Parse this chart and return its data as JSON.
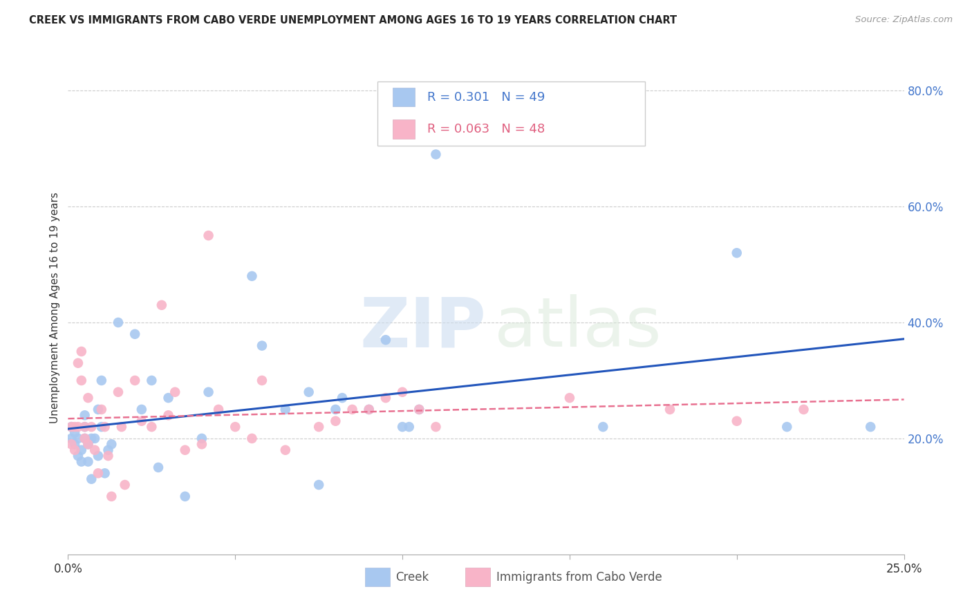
{
  "title": "CREEK VS IMMIGRANTS FROM CABO VERDE UNEMPLOYMENT AMONG AGES 16 TO 19 YEARS CORRELATION CHART",
  "source": "Source: ZipAtlas.com",
  "ylabel": "Unemployment Among Ages 16 to 19 years",
  "xlim": [
    0.0,
    0.25
  ],
  "ylim": [
    0.0,
    0.85
  ],
  "yticks": [
    0.2,
    0.4,
    0.6,
    0.8
  ],
  "ytick_labels": [
    "20.0%",
    "40.0%",
    "60.0%",
    "80.0%"
  ],
  "xticks": [
    0.0,
    0.05,
    0.1,
    0.15,
    0.2,
    0.25
  ],
  "xtick_labels": [
    "0.0%",
    "",
    "",
    "",
    "",
    "25.0%"
  ],
  "legend_labels": [
    "Creek",
    "Immigrants from Cabo Verde"
  ],
  "creek_color": "#a8c8f0",
  "cabo_color": "#f8b4c8",
  "creek_line_color": "#2255bb",
  "cabo_line_color": "#e87090",
  "creek_R": 0.301,
  "creek_N": 49,
  "cabo_R": 0.063,
  "cabo_N": 48,
  "watermark_zip": "ZIP",
  "watermark_atlas": "atlas",
  "creek_x": [
    0.001,
    0.001,
    0.002,
    0.002,
    0.003,
    0.003,
    0.004,
    0.004,
    0.005,
    0.005,
    0.005,
    0.006,
    0.006,
    0.007,
    0.007,
    0.008,
    0.009,
    0.009,
    0.01,
    0.01,
    0.011,
    0.012,
    0.013,
    0.015,
    0.02,
    0.022,
    0.025,
    0.027,
    0.03,
    0.035,
    0.04,
    0.042,
    0.055,
    0.058,
    0.065,
    0.072,
    0.075,
    0.08,
    0.082,
    0.09,
    0.095,
    0.1,
    0.102,
    0.105,
    0.11,
    0.16,
    0.2,
    0.215,
    0.24
  ],
  "creek_y": [
    0.22,
    0.2,
    0.19,
    0.21,
    0.17,
    0.2,
    0.16,
    0.18,
    0.22,
    0.2,
    0.24,
    0.19,
    0.16,
    0.13,
    0.2,
    0.2,
    0.25,
    0.17,
    0.22,
    0.3,
    0.14,
    0.18,
    0.19,
    0.4,
    0.38,
    0.25,
    0.3,
    0.15,
    0.27,
    0.1,
    0.2,
    0.28,
    0.48,
    0.36,
    0.25,
    0.28,
    0.12,
    0.25,
    0.27,
    0.25,
    0.37,
    0.22,
    0.22,
    0.25,
    0.69,
    0.22,
    0.52,
    0.22,
    0.22
  ],
  "cabo_x": [
    0.001,
    0.001,
    0.002,
    0.002,
    0.003,
    0.003,
    0.004,
    0.004,
    0.005,
    0.005,
    0.006,
    0.006,
    0.007,
    0.008,
    0.009,
    0.01,
    0.011,
    0.012,
    0.013,
    0.015,
    0.016,
    0.017,
    0.02,
    0.022,
    0.025,
    0.028,
    0.03,
    0.032,
    0.035,
    0.04,
    0.042,
    0.045,
    0.05,
    0.055,
    0.058,
    0.065,
    0.075,
    0.08,
    0.085,
    0.09,
    0.095,
    0.1,
    0.105,
    0.11,
    0.15,
    0.18,
    0.2,
    0.22
  ],
  "cabo_y": [
    0.22,
    0.19,
    0.22,
    0.18,
    0.33,
    0.22,
    0.35,
    0.3,
    0.22,
    0.2,
    0.27,
    0.19,
    0.22,
    0.18,
    0.14,
    0.25,
    0.22,
    0.17,
    0.1,
    0.28,
    0.22,
    0.12,
    0.3,
    0.23,
    0.22,
    0.43,
    0.24,
    0.28,
    0.18,
    0.19,
    0.55,
    0.25,
    0.22,
    0.2,
    0.3,
    0.18,
    0.22,
    0.23,
    0.25,
    0.25,
    0.27,
    0.28,
    0.25,
    0.22,
    0.27,
    0.25,
    0.23,
    0.25
  ]
}
